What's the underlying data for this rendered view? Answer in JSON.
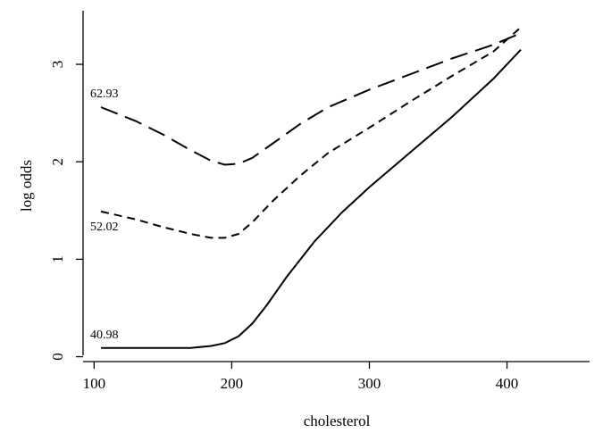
{
  "chart_data": {
    "type": "line",
    "title": "",
    "xlabel": "cholesterol",
    "ylabel": "log odds",
    "xlim": [
      92,
      460
    ],
    "ylim": [
      -0.05,
      3.55
    ],
    "x_ticks": [
      100,
      200,
      300,
      400
    ],
    "y_ticks": [
      0,
      1,
      2,
      3
    ],
    "grid": false,
    "legend": "none",
    "series": [
      {
        "name": "62.93",
        "dash": "long-dash",
        "points": [
          [
            105,
            2.56
          ],
          [
            130,
            2.42
          ],
          [
            150,
            2.28
          ],
          [
            170,
            2.12
          ],
          [
            185,
            2.01
          ],
          [
            195,
            1.97
          ],
          [
            205,
            1.98
          ],
          [
            215,
            2.04
          ],
          [
            230,
            2.19
          ],
          [
            250,
            2.39
          ],
          [
            270,
            2.56
          ],
          [
            300,
            2.74
          ],
          [
            330,
            2.9
          ],
          [
            360,
            3.06
          ],
          [
            390,
            3.2
          ],
          [
            410,
            3.32
          ]
        ]
      },
      {
        "name": "52.02",
        "dash": "short-dash",
        "points": [
          [
            105,
            1.49
          ],
          [
            130,
            1.41
          ],
          [
            150,
            1.33
          ],
          [
            170,
            1.26
          ],
          [
            185,
            1.22
          ],
          [
            195,
            1.22
          ],
          [
            205,
            1.26
          ],
          [
            215,
            1.38
          ],
          [
            230,
            1.6
          ],
          [
            250,
            1.86
          ],
          [
            270,
            2.09
          ],
          [
            300,
            2.35
          ],
          [
            330,
            2.62
          ],
          [
            360,
            2.88
          ],
          [
            390,
            3.13
          ],
          [
            410,
            3.38
          ]
        ]
      },
      {
        "name": "40.98",
        "dash": "solid",
        "points": [
          [
            105,
            0.09
          ],
          [
            140,
            0.09
          ],
          [
            170,
            0.09
          ],
          [
            185,
            0.11
          ],
          [
            195,
            0.14
          ],
          [
            205,
            0.21
          ],
          [
            215,
            0.34
          ],
          [
            225,
            0.52
          ],
          [
            240,
            0.82
          ],
          [
            260,
            1.18
          ],
          [
            280,
            1.48
          ],
          [
            300,
            1.74
          ],
          [
            330,
            2.1
          ],
          [
            360,
            2.46
          ],
          [
            390,
            2.85
          ],
          [
            410,
            3.15
          ]
        ]
      }
    ]
  },
  "labels": {
    "series_62": "62.93",
    "series_52": "52.02",
    "series_40": "40.98"
  }
}
